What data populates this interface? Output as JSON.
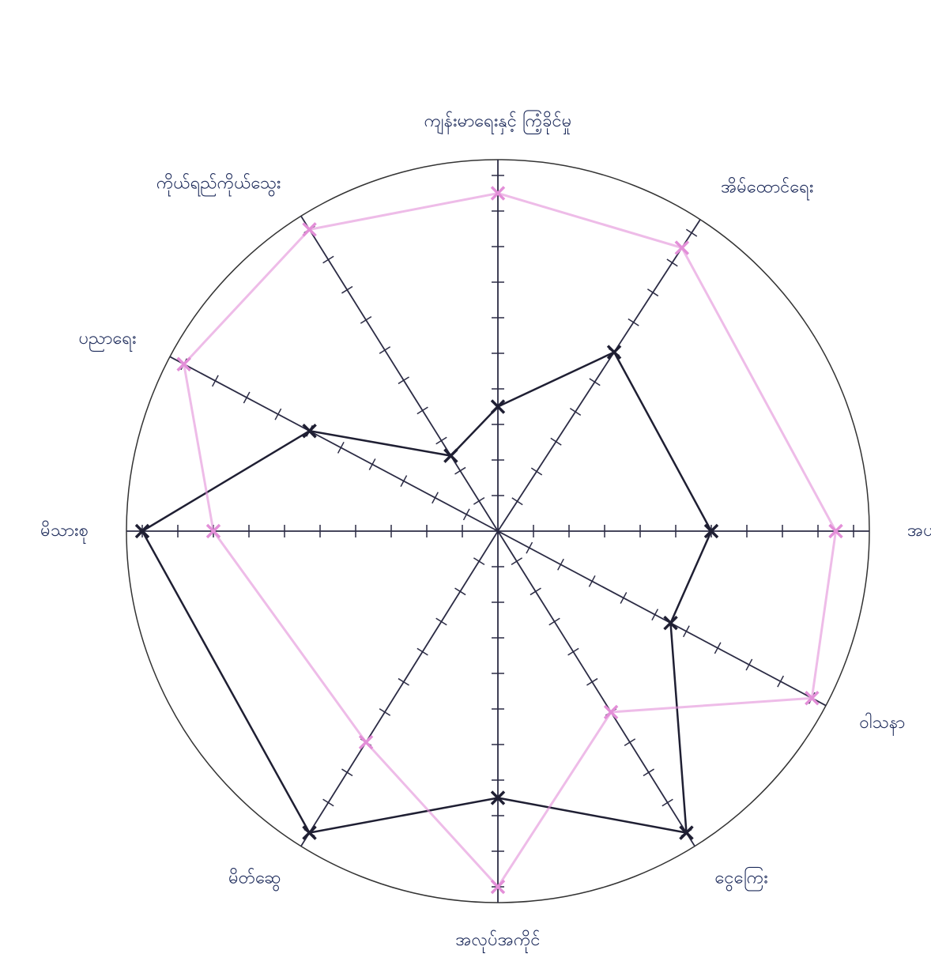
{
  "chart_data": {
    "type": "radar",
    "categories": [
      "ကျန်းမာရေးနှင့် ကြံ့ခိုင်မှု",
      "အိမ်ထောင်ရေး",
      "အပန်းဖြေ ဖျော်ဖြေရေး",
      "ဝါသနာ",
      "ငွေကြေး",
      "အလုပ်အကိုင်",
      "မိတ်ဆွေ",
      "မိသားစု",
      "ပညာရေး",
      "ကိုယ်ရည်ကိုယ်သွေး"
    ],
    "rlim": [
      0,
      10
    ],
    "rticks": [
      1,
      2,
      3,
      4,
      5,
      6,
      7,
      8,
      9,
      10
    ],
    "series": [
      {
        "color": "#1f1f33",
        "values": [
          3.5,
          6,
          6,
          5.5,
          10,
          7.5,
          10,
          10,
          6,
          2.5
        ]
      },
      {
        "color": "#e38fd8",
        "values": [
          9.5,
          9.5,
          9.5,
          10,
          6,
          10,
          7,
          8,
          10,
          10
        ]
      }
    ]
  }
}
